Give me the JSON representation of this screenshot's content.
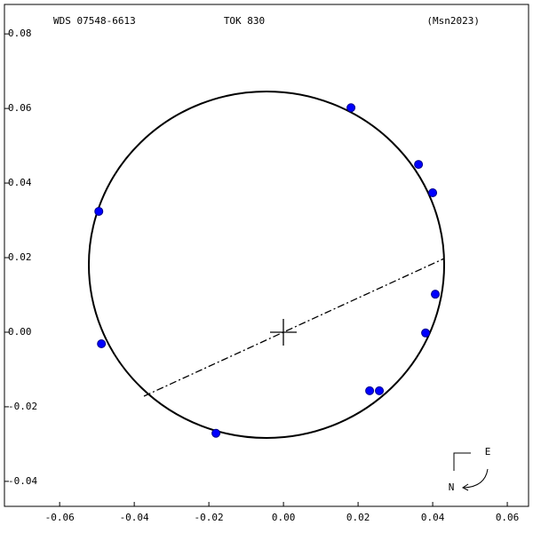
{
  "chart_data": {
    "type": "scatter",
    "header": {
      "left": "WDS 07548-6613",
      "center": "TOK 830",
      "right": "(Msn2023)"
    },
    "compass": {
      "east": "E",
      "north": "N"
    },
    "color": "#0000ff",
    "x": [
      0.0181,
      0.0362,
      0.04,
      -0.0495,
      0.0407,
      0.0381,
      -0.0488,
      0.0231,
      0.0257,
      -0.0181
    ],
    "values": [
      0.0602,
      0.045,
      0.0374,
      0.0324,
      0.0102,
      -0.0002,
      -0.0031,
      -0.0157,
      -0.0157,
      -0.0271
    ],
    "xlim": [
      -0.0748,
      0.0657
    ],
    "ylim": [
      -0.0467,
      0.0879
    ],
    "xticks": [
      -0.06,
      -0.04,
      -0.02,
      {
        "value": 0,
        "label": "0.00"
      },
      0.02,
      0.04,
      0.06
    ],
    "yticks": [
      0.08,
      0.06,
      0.04,
      0.02,
      {
        "value": 0,
        "label": "0.00"
      },
      -0.02,
      -0.04
    ]
  }
}
